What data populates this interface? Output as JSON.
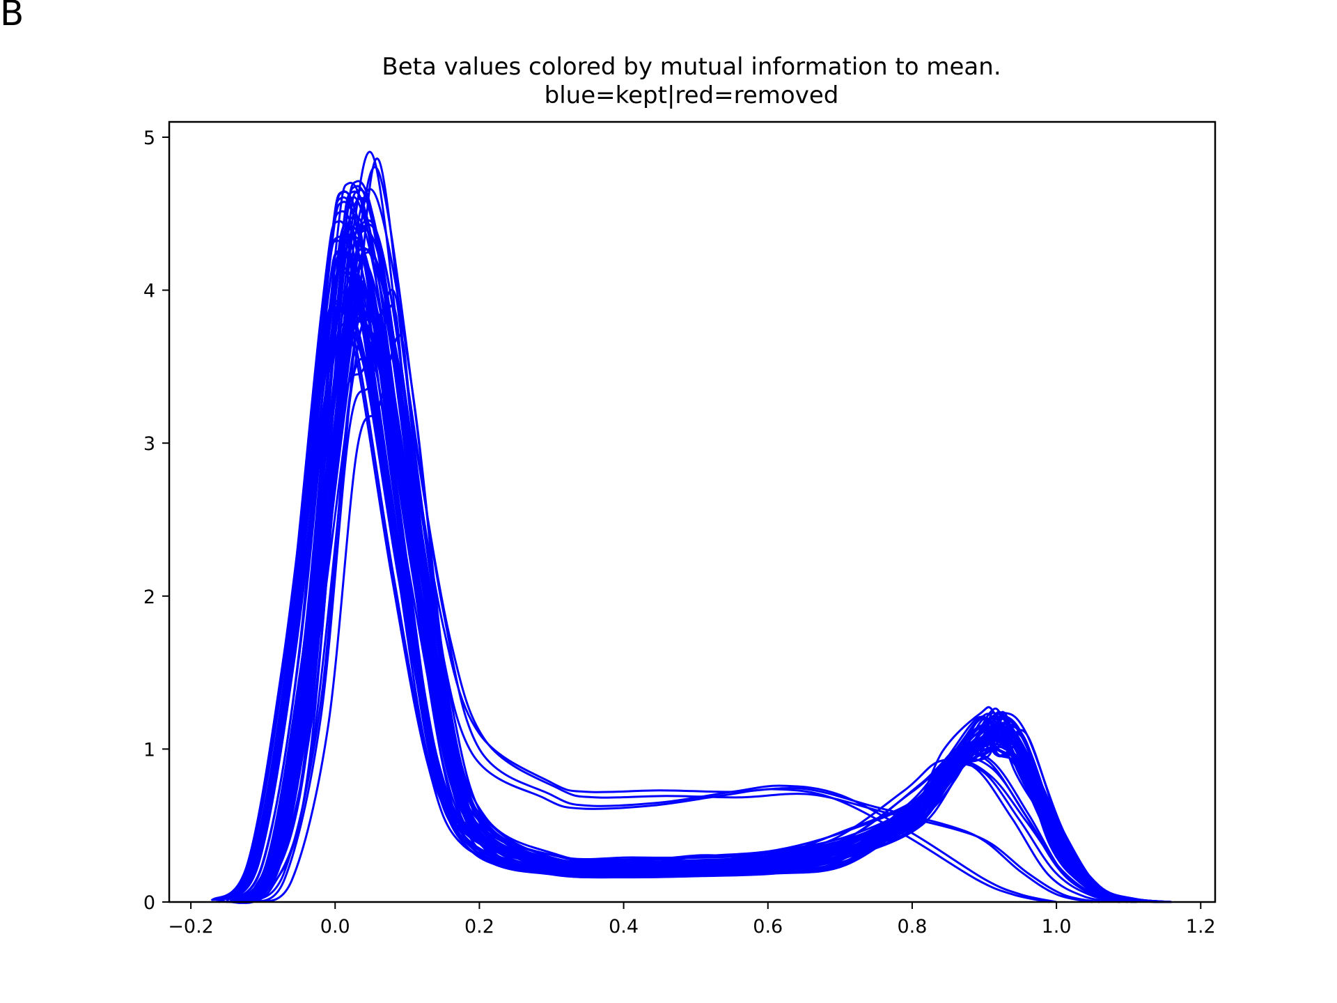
{
  "panel_label": "B",
  "chart_data": {
    "type": "line",
    "title": "Beta values colored by mutual information to mean.",
    "subtitle": "blue=kept|red=removed",
    "xlabel": "",
    "ylabel": "",
    "xlim": [
      -0.23,
      1.22
    ],
    "ylim": [
      0,
      5.1
    ],
    "x_ticks": [
      -0.2,
      0.0,
      0.2,
      0.4,
      0.6,
      0.8,
      1.0,
      1.2
    ],
    "x_tick_labels": [
      "−0.2",
      "0.0",
      "0.2",
      "0.4",
      "0.6",
      "0.8",
      "1.0",
      "1.2"
    ],
    "y_ticks": [
      0,
      1,
      2,
      3,
      4,
      5
    ],
    "y_tick_labels": [
      "0",
      "1",
      "2",
      "3",
      "4",
      "5"
    ],
    "grid": false,
    "legend": "none",
    "line_color": "#0000ff",
    "series_count": 60,
    "series_templates": [
      {
        "x": [
          -0.15,
          -0.1,
          -0.05,
          0.0,
          0.02,
          0.05,
          0.1,
          0.15,
          0.2,
          0.3,
          0.4,
          0.5,
          0.6,
          0.7,
          0.8,
          0.85,
          0.9,
          0.92,
          0.95,
          1.0,
          1.05,
          1.1,
          1.15
        ],
        "y": [
          0.01,
          0.25,
          1.6,
          4.1,
          4.6,
          4.2,
          2.5,
          0.9,
          0.38,
          0.22,
          0.2,
          0.21,
          0.23,
          0.3,
          0.6,
          0.95,
          1.18,
          1.2,
          1.05,
          0.45,
          0.1,
          0.02,
          0.0
        ]
      },
      {
        "x": [
          -0.15,
          -0.1,
          -0.05,
          0.0,
          0.02,
          0.05,
          0.1,
          0.15,
          0.2,
          0.3,
          0.4,
          0.5,
          0.6,
          0.7,
          0.8,
          0.85,
          0.9,
          0.95,
          1.0,
          1.05,
          1.1
        ],
        "y": [
          0.0,
          0.1,
          0.9,
          3.3,
          4.4,
          4.8,
          3.2,
          1.3,
          0.55,
          0.3,
          0.28,
          0.3,
          0.35,
          0.45,
          0.75,
          0.95,
          0.92,
          0.6,
          0.2,
          0.04,
          0.0
        ]
      },
      {
        "x": [
          -0.12,
          -0.07,
          -0.02,
          0.02,
          0.05,
          0.08,
          0.1,
          0.15,
          0.2,
          0.3,
          0.35,
          0.45,
          0.55,
          0.65,
          0.75,
          0.85,
          0.9,
          0.95,
          1.0,
          1.05
        ],
        "y": [
          0.0,
          0.15,
          1.2,
          3.1,
          3.4,
          3.9,
          3.2,
          1.8,
          1.1,
          0.78,
          0.72,
          0.73,
          0.72,
          0.74,
          0.62,
          0.5,
          0.4,
          0.2,
          0.05,
          0.0
        ]
      },
      {
        "x": [
          -0.12,
          -0.07,
          -0.02,
          0.02,
          0.05,
          0.08,
          0.1,
          0.15,
          0.2,
          0.3,
          0.35,
          0.45,
          0.55,
          0.62,
          0.7,
          0.8,
          0.9,
          0.95,
          1.0
        ],
        "y": [
          0.0,
          0.2,
          1.3,
          3.3,
          3.6,
          4.0,
          3.4,
          1.9,
          1.0,
          0.7,
          0.63,
          0.65,
          0.72,
          0.76,
          0.7,
          0.45,
          0.15,
          0.05,
          0.0
        ]
      }
    ]
  }
}
